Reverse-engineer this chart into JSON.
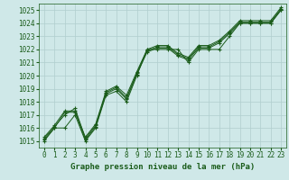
{
  "title": "Graphe pression niveau de la mer (hPa)",
  "bg_color": "#cfe8e8",
  "grid_color": "#b0cece",
  "line_color": "#1a5c1a",
  "xlim": [
    -0.5,
    23.5
  ],
  "ylim": [
    1014.5,
    1025.5
  ],
  "yticks": [
    1015,
    1016,
    1017,
    1018,
    1019,
    1020,
    1021,
    1022,
    1023,
    1024,
    1025
  ],
  "xticks": [
    0,
    1,
    2,
    3,
    4,
    5,
    6,
    7,
    8,
    9,
    10,
    11,
    12,
    13,
    14,
    15,
    16,
    17,
    18,
    19,
    20,
    21,
    22,
    23
  ],
  "series": [
    [
      1015.0,
      1016.0,
      1016.0,
      1017.0,
      1015.0,
      1016.0,
      1018.5,
      1018.8,
      1018.0,
      1020.0,
      1022.0,
      1022.0,
      1022.0,
      1022.0,
      1021.0,
      1022.0,
      1022.0,
      1022.0,
      1023.0,
      1024.0,
      1024.0,
      1024.0,
      1024.0,
      1025.0
    ],
    [
      1015.2,
      1016.1,
      1017.0,
      1017.5,
      1015.2,
      1016.2,
      1018.6,
      1019.0,
      1018.2,
      1020.1,
      1021.8,
      1022.1,
      1022.1,
      1021.5,
      1021.2,
      1022.1,
      1022.1,
      1022.5,
      1023.2,
      1024.0,
      1024.0,
      1024.0,
      1024.0,
      1025.0
    ],
    [
      1015.1,
      1016.0,
      1017.2,
      1017.2,
      1015.1,
      1016.1,
      1018.7,
      1019.1,
      1018.3,
      1020.2,
      1021.9,
      1022.2,
      1022.2,
      1021.6,
      1021.3,
      1022.2,
      1022.2,
      1022.6,
      1023.3,
      1024.1,
      1024.1,
      1024.1,
      1024.1,
      1025.1
    ],
    [
      1015.3,
      1016.2,
      1017.3,
      1017.3,
      1015.3,
      1016.3,
      1018.8,
      1019.2,
      1018.5,
      1020.3,
      1022.0,
      1022.3,
      1022.3,
      1021.7,
      1021.4,
      1022.3,
      1022.3,
      1022.7,
      1023.4,
      1024.2,
      1024.2,
      1024.2,
      1024.2,
      1025.2
    ]
  ]
}
